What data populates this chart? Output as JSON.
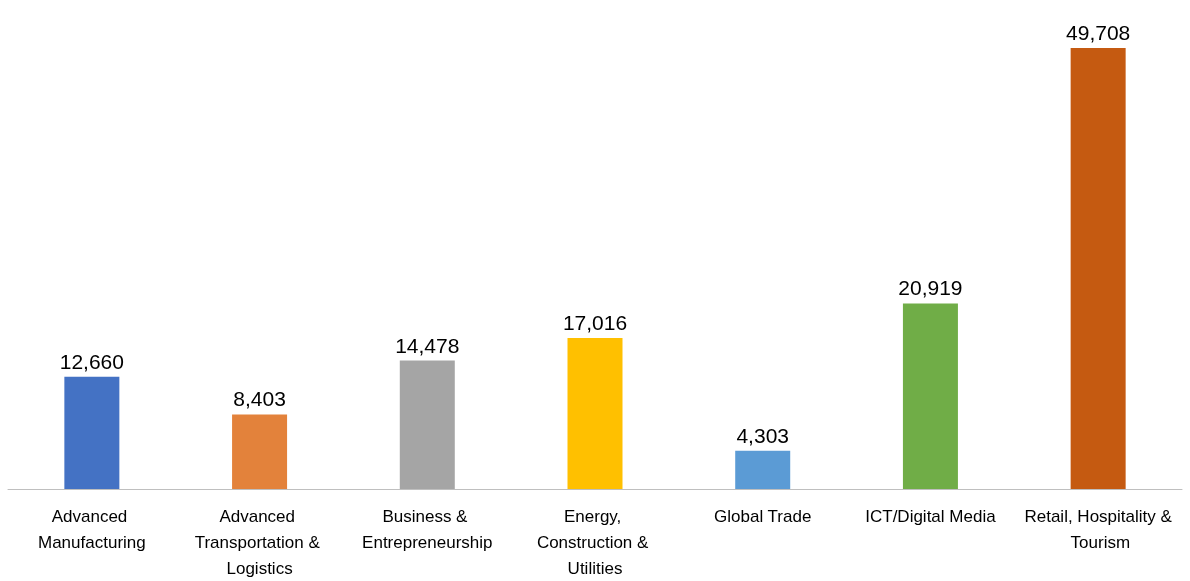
{
  "chart_data": {
    "type": "bar",
    "categories": [
      "Advanced Manufacturing",
      "Advanced Transportation & Logistics",
      "Business & Entrepreneurship",
      "Energy, Construction & Utilities",
      "Global Trade",
      "ICT/Digital Media",
      "Retail, Hospitality & Tourism"
    ],
    "values": [
      12660,
      8403,
      14478,
      17016,
      4303,
      20919,
      49708
    ],
    "colors": [
      "#4472c4",
      "#e3823b",
      "#a5a5a5",
      "#ffc000",
      "#5b9bd5",
      "#70ad47",
      "#c55a11"
    ],
    "value_labels": [
      "12,660",
      "8,403",
      "14,478",
      "17,016",
      "4,303",
      "20,919",
      "49,708"
    ]
  }
}
